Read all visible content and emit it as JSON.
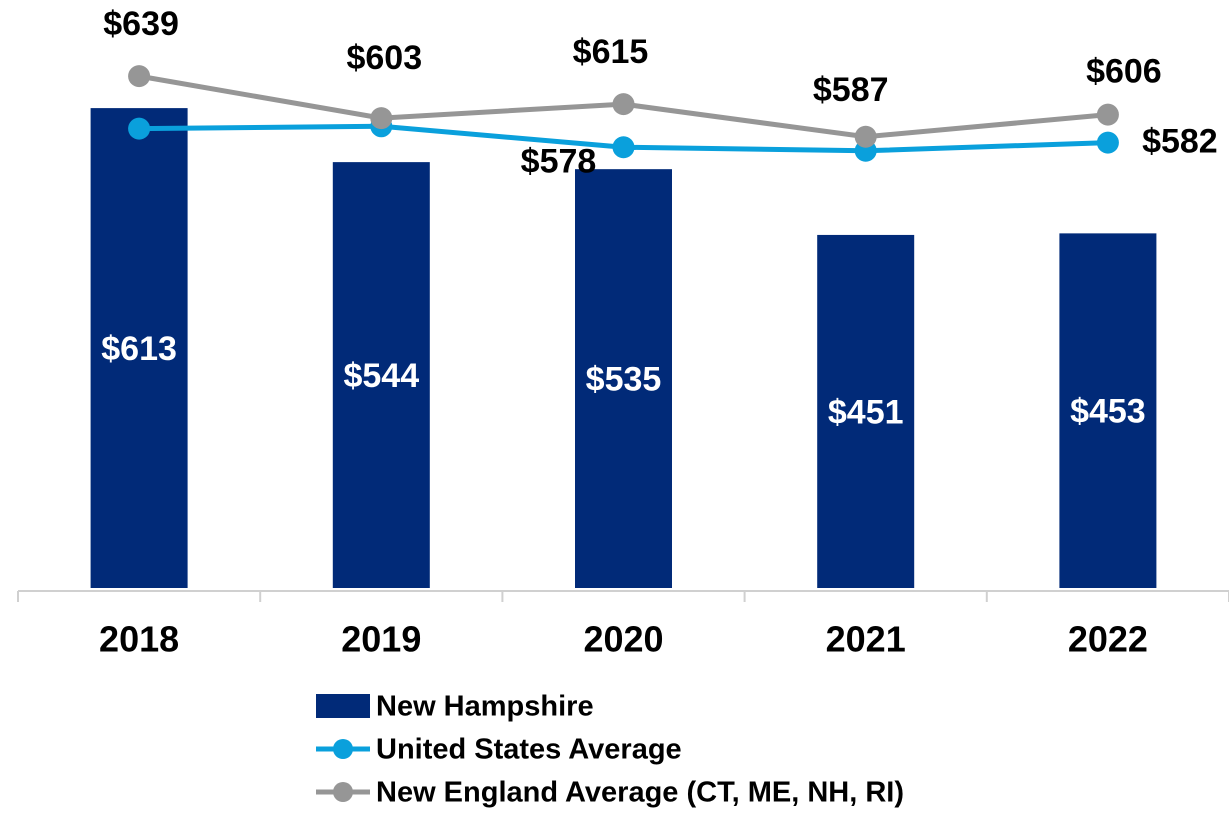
{
  "chart_data": {
    "type": "bar_line",
    "categories": [
      "2018",
      "2019",
      "2020",
      "2021",
      "2022"
    ],
    "ylim": [
      0,
      700
    ],
    "y2lim": [
      200,
      670
    ],
    "series": [
      {
        "name": "New Hampshire",
        "type": "bar",
        "color": "#012a78",
        "values": [
          613,
          544,
          535,
          451,
          453
        ],
        "value_labels": [
          "$613",
          "$544",
          "$535",
          "$451",
          "$453"
        ]
      },
      {
        "name": "United States Average",
        "type": "line",
        "axis": "y2",
        "color": "#0aa0dc",
        "values": [
          594,
          596,
          578,
          575,
          582
        ],
        "value_labels": [
          null,
          null,
          "$578",
          null,
          "$582"
        ]
      },
      {
        "name": "New England Average (CT, ME, NH, RI)",
        "type": "line",
        "axis": "y2",
        "color": "#969696",
        "values": [
          639,
          603,
          615,
          587,
          606
        ],
        "value_labels": [
          "$639",
          "$603",
          "$615",
          "$587",
          "$606"
        ]
      }
    ],
    "legend": "bottom"
  }
}
